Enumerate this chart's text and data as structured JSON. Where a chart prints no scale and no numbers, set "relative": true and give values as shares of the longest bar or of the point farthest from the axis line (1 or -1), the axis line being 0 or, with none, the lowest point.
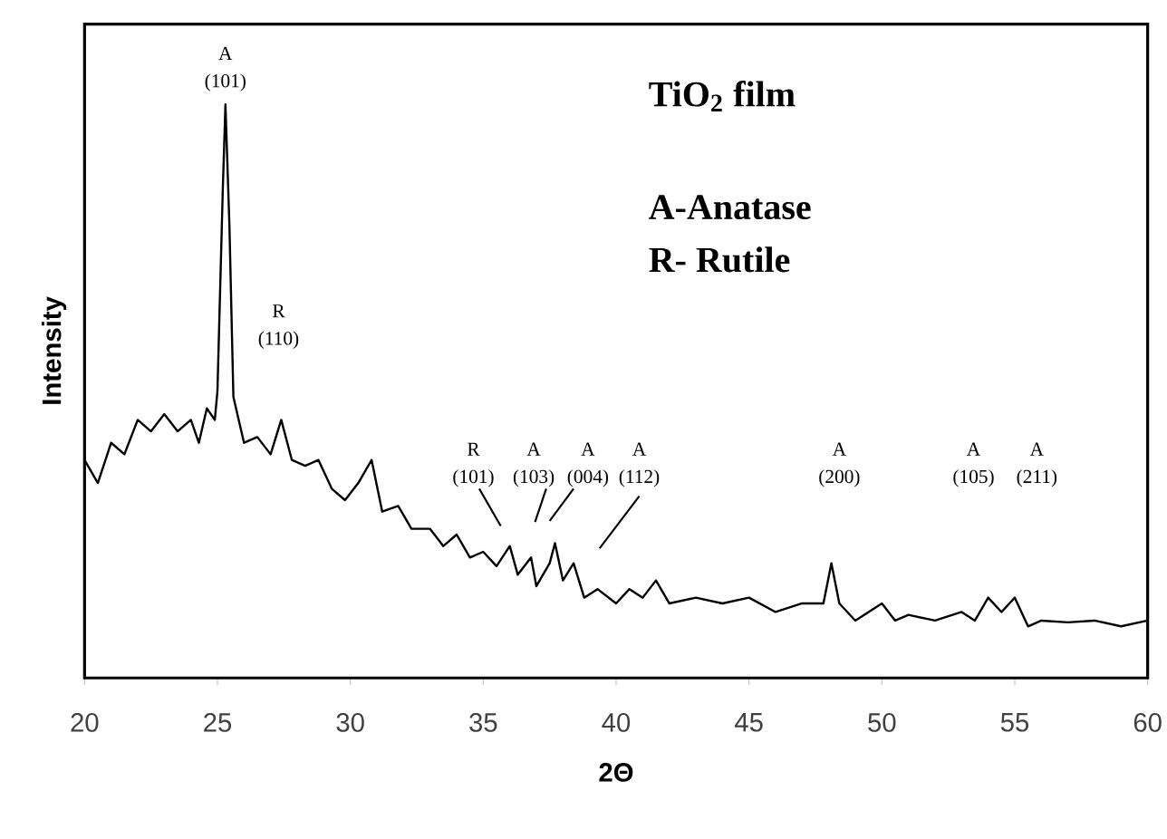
{
  "chart_data": {
    "type": "line",
    "relative": true,
    "xlabel": "2Θ",
    "ylabel": "Intensity",
    "xlim": [
      20,
      60
    ],
    "xticks": [
      20,
      25,
      30,
      35,
      40,
      45,
      50,
      55,
      60
    ],
    "color": "#000000",
    "marker": "none",
    "line_style": "solid",
    "tick_labels": "x",
    "x": [
      20,
      20.5,
      21,
      21.5,
      22,
      22.5,
      23,
      23.5,
      24,
      24.3,
      24.6,
      24.9,
      25.0,
      25.2,
      25.3,
      25.45,
      25.6,
      25.8,
      26,
      26.5,
      27,
      27.4,
      27.8,
      28.3,
      28.8,
      29.3,
      29.8,
      30.3,
      30.8,
      31.2,
      31.8,
      32.3,
      33,
      33.5,
      34,
      34.5,
      35,
      35.5,
      36,
      36.3,
      36.8,
      37,
      37.5,
      37.7,
      38,
      38.4,
      38.8,
      39.3,
      40,
      40.5,
      41,
      41.5,
      42,
      43,
      44,
      45,
      46,
      47,
      47.8,
      48.1,
      48.4,
      49,
      50,
      50.5,
      51,
      52,
      53,
      53.5,
      54,
      54.5,
      55,
      55.5,
      56,
      57,
      58,
      59,
      60
    ],
    "values": [
      0.38,
      0.34,
      0.41,
      0.39,
      0.45,
      0.43,
      0.46,
      0.43,
      0.45,
      0.41,
      0.47,
      0.45,
      0.5,
      0.85,
      1.0,
      0.79,
      0.49,
      0.45,
      0.41,
      0.42,
      0.39,
      0.45,
      0.38,
      0.37,
      0.38,
      0.33,
      0.31,
      0.34,
      0.38,
      0.29,
      0.3,
      0.26,
      0.26,
      0.23,
      0.25,
      0.21,
      0.22,
      0.195,
      0.23,
      0.18,
      0.21,
      0.16,
      0.2,
      0.235,
      0.17,
      0.2,
      0.14,
      0.155,
      0.13,
      0.155,
      0.14,
      0.17,
      0.13,
      0.14,
      0.13,
      0.14,
      0.115,
      0.13,
      0.13,
      0.2,
      0.13,
      0.1,
      0.13,
      0.1,
      0.11,
      0.1,
      0.115,
      0.1,
      0.14,
      0.115,
      0.14,
      0.09,
      0.1,
      0.097,
      0.1,
      0.09,
      0.1
    ],
    "annotations": [
      "A",
      "(101)",
      "R",
      "(110)",
      "R",
      "(101)",
      "A",
      "(103)",
      "A",
      "(004)",
      "A",
      "(112)",
      "A",
      "(200)",
      "A",
      "(105)",
      "A",
      "(211)",
      "TiO$_{2}$ film",
      "A-Anatase",
      "R- Rutile"
    ]
  }
}
